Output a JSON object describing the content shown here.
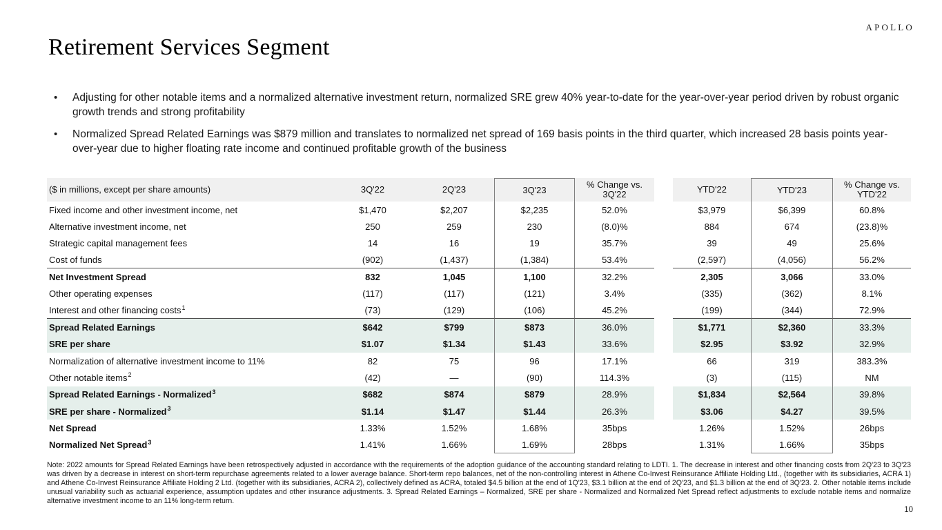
{
  "brand": {
    "logo_text": "APOLLO"
  },
  "slide": {
    "title": "Retirement Services Segment",
    "page_number": "10",
    "bullet_marker": "•"
  },
  "bullets": [
    "Adjusting for other notable items and a normalized alternative investment return, normalized SRE grew 40% year-to-date for the year-over-year period driven by robust organic growth trends and strong profitability",
    "Normalized Spread Related Earnings was $879 million and translates to normalized net spread of 169 basis points in the third quarter, which increased 28 basis points year-over-year due to higher floating rate income and continued profitable growth of the business"
  ],
  "table": {
    "caption": "($ in millions, except per share amounts)",
    "columns": [
      "3Q'22",
      "2Q'23",
      "3Q'23",
      "% Change vs.\n3Q'22",
      "YTD'22",
      "YTD'23",
      "% Change vs.\nYTD'22"
    ],
    "rows": [
      {
        "label": "Fixed income and other investment income, net",
        "sup": "",
        "values": [
          "$1,470",
          "$2,207",
          "$2,235",
          "52.0%",
          "$3,979",
          "$6,399",
          "60.8%"
        ],
        "bold_label": false,
        "bold_values": false,
        "highlight": false,
        "rule_below": false
      },
      {
        "label": "Alternative investment income, net",
        "sup": "",
        "values": [
          "250",
          "259",
          "230",
          "(8.0)%",
          "884",
          "674",
          "(23.8)%"
        ],
        "bold_label": false,
        "bold_values": false,
        "highlight": false,
        "rule_below": false
      },
      {
        "label": "Strategic capital management fees",
        "sup": "",
        "values": [
          "14",
          "16",
          "19",
          "35.7%",
          "39",
          "49",
          "25.6%"
        ],
        "bold_label": false,
        "bold_values": false,
        "highlight": false,
        "rule_below": false
      },
      {
        "label": "Cost of funds",
        "sup": "",
        "values": [
          "(902)",
          "(1,437)",
          "(1,384)",
          "53.4%",
          "(2,597)",
          "(4,056)",
          "56.2%"
        ],
        "bold_label": false,
        "bold_values": false,
        "highlight": false,
        "rule_below": true
      },
      {
        "label": "Net Investment Spread",
        "sup": "",
        "values": [
          "832",
          "1,045",
          "1,100",
          "32.2%",
          "2,305",
          "3,066",
          "33.0%"
        ],
        "bold_label": true,
        "bold_values": true,
        "highlight": false,
        "rule_below": false
      },
      {
        "label": "Other operating expenses",
        "sup": "",
        "values": [
          "(117)",
          "(117)",
          "(121)",
          "3.4%",
          "(335)",
          "(362)",
          "8.1%"
        ],
        "bold_label": false,
        "bold_values": false,
        "highlight": false,
        "rule_below": false
      },
      {
        "label": "Interest and other financing costs",
        "sup": "1",
        "values": [
          "(73)",
          "(129)",
          "(106)",
          "45.2%",
          "(199)",
          "(344)",
          "72.9%"
        ],
        "bold_label": false,
        "bold_values": false,
        "highlight": false,
        "rule_below": true
      },
      {
        "label": "Spread Related Earnings",
        "sup": "",
        "values": [
          "$642",
          "$799",
          "$873",
          "36.0%",
          "$1,771",
          "$2,360",
          "33.3%"
        ],
        "bold_label": true,
        "bold_values": true,
        "highlight": true,
        "rule_below": false
      },
      {
        "label": "SRE per share",
        "sup": "",
        "values": [
          "$1.07",
          "$1.34",
          "$1.43",
          "33.6%",
          "$2.95",
          "$3.92",
          "32.9%"
        ],
        "bold_label": true,
        "bold_values": true,
        "highlight": true,
        "rule_below": false
      },
      {
        "label": "Normalization of alternative investment income to 11%",
        "sup": "",
        "values": [
          "82",
          "75",
          "96",
          "17.1%",
          "66",
          "319",
          "383.3%"
        ],
        "bold_label": false,
        "bold_values": false,
        "highlight": false,
        "rule_below": false
      },
      {
        "label": "Other notable items",
        "sup": "2",
        "values": [
          "(42)",
          "—",
          "(90)",
          "114.3%",
          "(3)",
          "(115)",
          "NM"
        ],
        "bold_label": false,
        "bold_values": false,
        "highlight": false,
        "rule_below": false
      },
      {
        "label": "Spread Related Earnings - Normalized",
        "sup": "3",
        "values": [
          "$682",
          "$874",
          "$879",
          "28.9%",
          "$1,834",
          "$2,564",
          "39.8%"
        ],
        "bold_label": true,
        "bold_values": true,
        "highlight": true,
        "rule_below": false
      },
      {
        "label": "SRE per share - Normalized",
        "sup": "3",
        "values": [
          "$1.14",
          "$1.47",
          "$1.44",
          "26.3%",
          "$3.06",
          "$4.27",
          "39.5%"
        ],
        "bold_label": true,
        "bold_values": true,
        "highlight": true,
        "rule_below": false
      },
      {
        "label": "Net Spread",
        "sup": "",
        "values": [
          "1.33%",
          "1.52%",
          "1.68%",
          "35bps",
          "1.26%",
          "1.52%",
          "26bps"
        ],
        "bold_label": true,
        "bold_values": false,
        "highlight": false,
        "rule_below": false
      },
      {
        "label": "Normalized Net Spread",
        "sup": "3",
        "values": [
          "1.41%",
          "1.66%",
          "1.69%",
          "28bps",
          "1.31%",
          "1.66%",
          "35bps"
        ],
        "bold_label": true,
        "bold_values": false,
        "highlight": false,
        "rule_below": false
      }
    ]
  },
  "footnote": "Note: 2022 amounts for Spread Related Earnings have been retrospectively adjusted in accordance with the requirements of the adoption guidance of the accounting standard relating to LDTI. 1. The decrease in interest and other financing costs from 2Q'23 to 3Q'23 was driven by a decrease in interest on short-term repurchase agreements related to a lower average balance. Short-term repo balances, net of the non-controlling interest in Athene Co-Invest Reinsurance Affiliate Holding Ltd., (together with its subsidiaries, ACRA 1) and Athene Co-Invest Reinsurance Affiliate Holding 2 Ltd. (together with its subsidiaries, ACRA 2), collectively defined as ACRA, totaled $4.5 billion at the end of 1Q'23, $3.1 billion at the end of 2Q'23, and $1.3 billion at the end of 3Q'23. 2. Other notable items include unusual variability such as actuarial experience, assumption updates and other insurance adjustments. 3. Spread Related Earnings – Normalized, SRE per share - Normalized and Normalized Net Spread reflect adjustments to exclude notable items and normalize alternative investment income to an 11% long-term return.",
  "colors": {
    "highlight_row_bg": "#e5efeb",
    "header_row_bg": "#f0f0f0",
    "box_border": "#808080",
    "rule_line": "#4d4d4d"
  }
}
